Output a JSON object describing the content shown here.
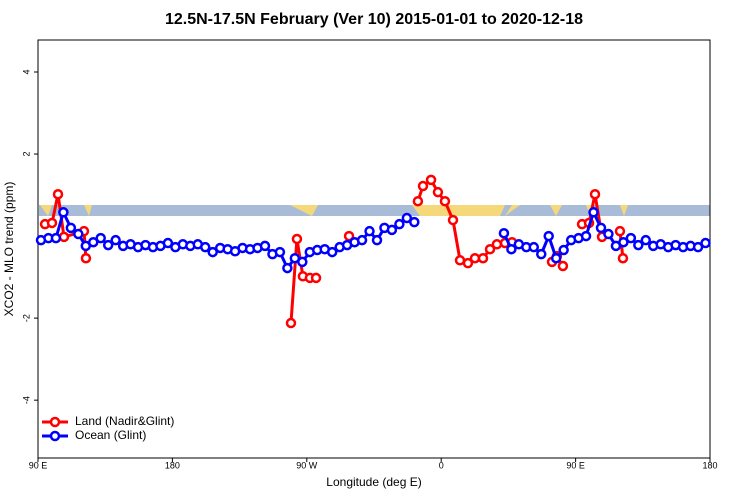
{
  "chart_data": {
    "type": "line",
    "title": "12.5N-17.5N February (Ver 10)   2015-01-01 to 2020-12-18",
    "x_label": "Longitude (deg E)",
    "y_label": "XCO2 - MLO trend (ppm)",
    "xlim": [
      90,
      540
    ],
    "ylim": [
      -5.41,
      4.78
    ],
    "xticks": [
      {
        "value": 90,
        "label": "90 E"
      },
      {
        "value": 180,
        "label": "180"
      },
      {
        "value": 270,
        "label": "90 W"
      },
      {
        "value": 360,
        "label": "0"
      },
      {
        "value": 450,
        "label": "90 E"
      },
      {
        "value": 540,
        "label": "180"
      }
    ],
    "yticks": [
      -4,
      -2,
      2,
      4
    ],
    "legend": "bottom-left",
    "series": [
      {
        "name": "Land (Nadir&Glint)",
        "color": "#ff0000",
        "x": [
          94.7,
          99.4,
          103.4,
          107.4,
          120.8,
          122.1,
          190,
          259.4,
          263.4,
          267.4,
          272.1,
          276.2,
          285,
          298.3,
          320,
          344.4,
          347.8,
          353.2,
          357.8,
          362.5,
          367.9,
          372.6,
          377.9,
          382.6,
          388.0,
          392.7,
          397.3,
          402.7,
          407.4,
          420,
          434.2,
          437.5,
          441.5,
          450,
          454.3,
          459.0,
          463.0,
          467.7,
          475,
          479.7,
          481.7
        ],
        "values": [
          0.29,
          0.32,
          1.02,
          -0.02,
          0.12,
          -0.54,
          null,
          -2.12,
          -0.07,
          -0.98,
          -1.02,
          -1.02,
          null,
          0.0,
          null,
          0.85,
          1.22,
          1.37,
          1.07,
          0.85,
          0.39,
          -0.59,
          -0.66,
          -0.54,
          -0.54,
          -0.32,
          -0.2,
          -0.17,
          -0.15,
          null,
          -0.63,
          -0.49,
          -0.73,
          null,
          0.29,
          0.32,
          1.02,
          -0.02,
          null,
          0.12,
          -0.54
        ]
      },
      {
        "name": "Ocean (Glint)",
        "color": "#0000ff",
        "x": [
          92,
          97,
          102,
          107,
          112,
          117,
          122,
          127,
          132,
          137,
          142,
          147,
          152,
          157,
          162,
          167,
          172,
          177,
          182,
          187,
          192,
          197,
          202,
          207,
          212,
          217,
          222,
          227,
          232,
          237,
          242,
          247,
          252,
          257,
          262,
          267,
          272,
          277,
          282,
          287,
          292,
          297,
          302,
          307,
          312,
          317,
          322,
          327,
          332,
          337,
          342,
          372,
          402,
          407,
          412,
          417,
          422,
          427,
          432,
          437,
          442,
          447,
          452,
          457,
          462,
          467,
          472,
          477,
          482,
          487,
          492,
          497,
          502,
          507,
          512,
          517,
          522,
          527,
          532,
          537
        ],
        "values": [
          -0.1,
          -0.05,
          -0.05,
          0.58,
          0.2,
          0.05,
          -0.24,
          -0.15,
          -0.05,
          -0.22,
          -0.1,
          -0.24,
          -0.2,
          -0.27,
          -0.22,
          -0.27,
          -0.24,
          -0.17,
          -0.27,
          -0.2,
          -0.24,
          -0.2,
          -0.27,
          -0.39,
          -0.29,
          -0.32,
          -0.37,
          -0.29,
          -0.32,
          -0.29,
          -0.24,
          -0.44,
          -0.39,
          -0.78,
          -0.54,
          -0.63,
          -0.39,
          -0.34,
          -0.32,
          -0.39,
          -0.27,
          -0.22,
          -0.15,
          -0.1,
          0.12,
          -0.1,
          0.2,
          0.15,
          0.29,
          0.44,
          0.34,
          null,
          0.07,
          -0.32,
          -0.2,
          -0.27,
          -0.27,
          -0.44,
          0.0,
          -0.54,
          -0.34,
          -0.1,
          -0.05,
          0.0,
          0.58,
          0.2,
          0.05,
          -0.24,
          -0.15,
          -0.05,
          -0.22,
          -0.1,
          -0.24,
          -0.2,
          -0.27,
          -0.22,
          -0.27,
          -0.24,
          -0.27,
          -0.17
        ]
      }
    ]
  }
}
